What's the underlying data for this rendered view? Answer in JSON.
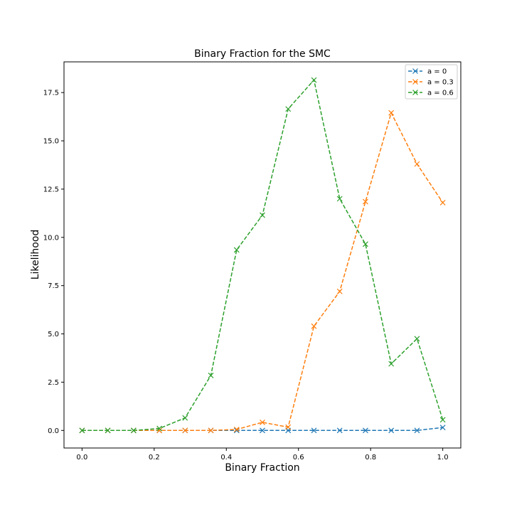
{
  "chart_data": {
    "type": "line",
    "title": "Binary Fraction for the SMC",
    "xlabel": "Binary Fraction",
    "ylabel": "Likelihood",
    "xlim": [
      -0.05,
      1.05
    ],
    "ylim": [
      -0.91,
      19.09
    ],
    "xticks": [
      0.0,
      0.2,
      0.4,
      0.6,
      0.8,
      1.0
    ],
    "xtick_labels": [
      "0.0",
      "0.2",
      "0.4",
      "0.6",
      "0.8",
      "1.0"
    ],
    "yticks": [
      0.0,
      2.5,
      5.0,
      7.5,
      10.0,
      12.5,
      15.0,
      17.5
    ],
    "ytick_labels": [
      "0.0",
      "2.5",
      "5.0",
      "7.5",
      "10.0",
      "12.5",
      "15.0",
      "17.5"
    ],
    "grid": false,
    "legend_position": "top-right",
    "line_style": "dashed",
    "marker": "x",
    "x": [
      0.0,
      0.0714,
      0.1429,
      0.2143,
      0.2857,
      0.3571,
      0.4286,
      0.5,
      0.5714,
      0.6429,
      0.7143,
      0.7857,
      0.8571,
      0.9286,
      1.0
    ],
    "series": [
      {
        "name": "a = 0",
        "color": "#1f77b4",
        "values": [
          0.0,
          0.0,
          0.0,
          0.0,
          0.0,
          0.0,
          0.0,
          0.0,
          0.0,
          0.0,
          0.0,
          0.0,
          0.0,
          0.0,
          0.15
        ]
      },
      {
        "name": "a = 0.3",
        "color": "#ff7f0e",
        "values": [
          0.0,
          0.0,
          0.0,
          0.0,
          0.0,
          0.0,
          0.05,
          0.42,
          0.17,
          5.4,
          7.2,
          11.85,
          16.45,
          13.8,
          11.8
        ]
      },
      {
        "name": "a = 0.6",
        "color": "#2ca02c",
        "values": [
          0.0,
          0.0,
          0.0,
          0.1,
          0.65,
          2.85,
          9.35,
          11.15,
          16.65,
          18.15,
          12.0,
          9.65,
          3.45,
          4.75,
          0.55
        ]
      }
    ]
  }
}
